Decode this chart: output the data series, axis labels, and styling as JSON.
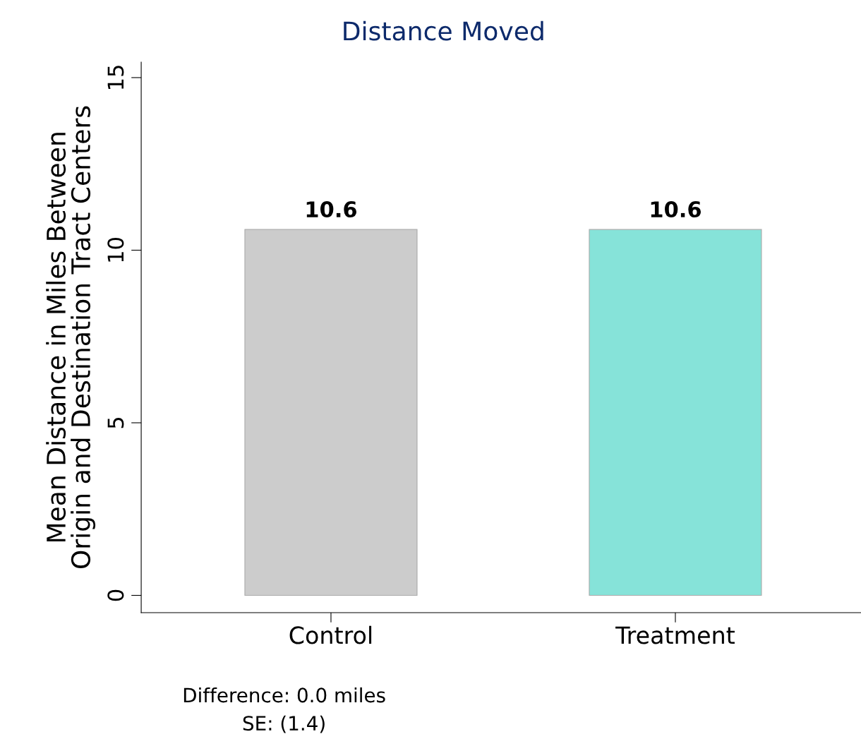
{
  "chart_data": {
    "type": "bar",
    "title": "Distance Moved",
    "ylabel": "Mean Distance in Miles Between\nOrigin and Destination Tract Centers",
    "categories": [
      "Control",
      "Treatment"
    ],
    "values": [
      10.6,
      10.6
    ],
    "colors": [
      "#cccccc",
      "#86e3d9"
    ],
    "ylim": [
      -0.5,
      15.45
    ],
    "yticks": [
      0,
      5,
      10,
      15
    ],
    "data_labels": true,
    "grid": false,
    "legend": false,
    "annotations": [
      "Difference: 0.0 miles",
      "SE: (1.4)"
    ]
  }
}
